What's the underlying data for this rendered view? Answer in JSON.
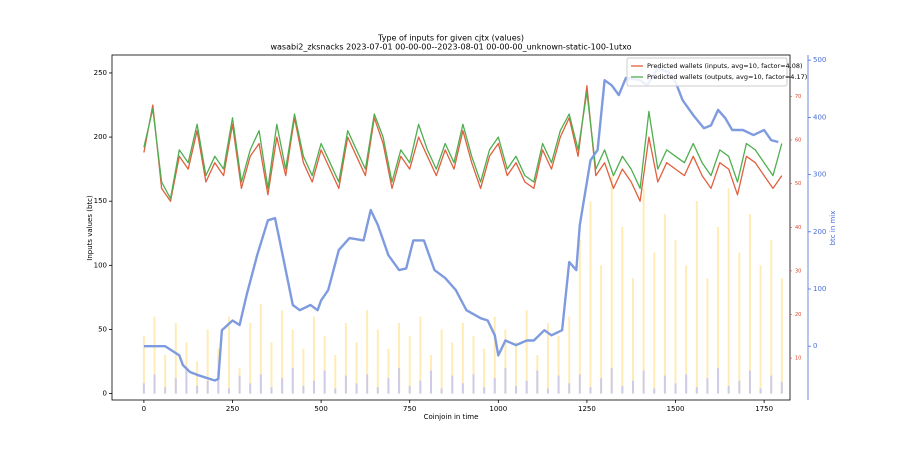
{
  "chart_data": {
    "type": "line",
    "title": "Type of inputs for given cjtx (values)",
    "subtitle": "wasabi2_zksnacks 2023-07-01 00-00-00--2023-08-01 00-00-00_unknown-static-100-1utxo",
    "xlabel": "Coinjoin in time",
    "ylabel": "Inputs values (btc)",
    "y2label": "btc in mix",
    "xlim": [
      -90,
      1823
    ],
    "xticks": [
      0,
      250,
      500,
      750,
      1000,
      1250,
      1500,
      1750
    ],
    "ylim": [
      -5,
      264
    ],
    "yticks": [
      0,
      50,
      100,
      150,
      200,
      250
    ],
    "y2lim": [
      -94,
      509
    ],
    "y2ticks": [
      0,
      100,
      200,
      300,
      400,
      500
    ],
    "y3lim": [
      0.4,
      79.5
    ],
    "y3ticks": [
      10,
      20,
      30,
      40,
      50,
      60,
      70
    ],
    "legend": "upper right",
    "series": [
      {
        "type": "bar",
        "color": "#ffe7a3",
        "x": [
          0,
          30,
          60,
          90,
          120,
          150,
          180,
          210,
          240,
          270,
          300,
          330,
          360,
          390,
          420,
          450,
          480,
          510,
          540,
          570,
          600,
          630,
          660,
          690,
          720,
          750,
          780,
          810,
          840,
          870,
          900,
          930,
          960,
          990,
          1020,
          1050,
          1080,
          1110,
          1140,
          1170,
          1200,
          1230,
          1260,
          1290,
          1320,
          1350,
          1380,
          1410,
          1440,
          1470,
          1500,
          1530,
          1560,
          1590,
          1620,
          1650,
          1680,
          1710,
          1740,
          1770,
          1800
        ],
        "values": [
          45,
          60,
          30,
          55,
          40,
          25,
          50,
          35,
          60,
          20,
          55,
          70,
          40,
          65,
          50,
          35,
          60,
          45,
          30,
          55,
          40,
          65,
          50,
          35,
          55,
          45,
          60,
          30,
          50,
          40,
          55,
          45,
          35,
          60,
          50,
          40,
          65,
          30,
          55,
          45,
          60,
          120,
          150,
          100,
          170,
          130,
          90,
          160,
          110,
          140,
          120,
          100,
          150,
          90,
          130,
          160,
          110,
          140,
          100,
          120,
          90
        ]
      },
      {
        "type": "bar",
        "color": "#c3c3f2",
        "x": [
          0,
          30,
          60,
          90,
          120,
          150,
          180,
          210,
          240,
          270,
          300,
          330,
          360,
          390,
          420,
          450,
          480,
          510,
          540,
          570,
          600,
          630,
          660,
          690,
          720,
          750,
          780,
          810,
          840,
          870,
          900,
          930,
          960,
          990,
          1020,
          1050,
          1080,
          1110,
          1140,
          1170,
          1200,
          1230,
          1260,
          1290,
          1320,
          1350,
          1380,
          1410,
          1440,
          1470,
          1500,
          1530,
          1560,
          1590,
          1620,
          1650,
          1680,
          1710,
          1740,
          1770,
          1800
        ],
        "values": [
          8,
          15,
          5,
          12,
          20,
          6,
          10,
          18,
          4,
          14,
          8,
          15,
          5,
          12,
          20,
          6,
          10,
          18,
          4,
          14,
          8,
          15,
          5,
          12,
          20,
          6,
          10,
          18,
          4,
          14,
          8,
          15,
          5,
          12,
          20,
          6,
          10,
          18,
          4,
          14,
          8,
          15,
          5,
          12,
          20,
          6,
          10,
          18,
          4,
          14,
          8,
          15,
          5,
          12,
          20,
          6,
          10,
          18,
          4,
          14,
          9
        ]
      },
      {
        "name": "Predicted wallets (inputs, avg=10, factor=4.08)",
        "color": "#e0603f",
        "width": 1.3,
        "x": [
          0,
          25,
          50,
          75,
          100,
          125,
          150,
          175,
          200,
          225,
          250,
          275,
          300,
          325,
          350,
          375,
          400,
          425,
          450,
          475,
          500,
          525,
          550,
          575,
          600,
          625,
          650,
          675,
          700,
          725,
          750,
          775,
          800,
          825,
          850,
          875,
          900,
          925,
          950,
          975,
          1000,
          1025,
          1050,
          1075,
          1100,
          1125,
          1150,
          1175,
          1200,
          1225,
          1250,
          1275,
          1300,
          1325,
          1350,
          1375,
          1400,
          1425,
          1450,
          1475,
          1500,
          1525,
          1550,
          1575,
          1600,
          1625,
          1650,
          1675,
          1700,
          1725,
          1750,
          1775,
          1800
        ],
        "values": [
          188,
          225,
          160,
          150,
          185,
          175,
          205,
          165,
          180,
          170,
          210,
          160,
          185,
          195,
          155,
          200,
          170,
          215,
          180,
          165,
          190,
          175,
          160,
          200,
          185,
          170,
          215,
          195,
          160,
          185,
          175,
          200,
          185,
          170,
          190,
          175,
          205,
          180,
          160,
          185,
          195,
          170,
          180,
          165,
          160,
          190,
          175,
          200,
          215,
          185,
          240,
          170,
          180,
          160,
          175,
          165,
          150,
          200,
          165,
          180,
          175,
          170,
          185,
          170,
          160,
          180,
          175,
          155,
          185,
          180,
          170,
          160,
          170
        ]
      },
      {
        "name": "Predicted wallets (outputs, avg=10, factor=4.17)",
        "color": "#4fae4f",
        "width": 1.3,
        "x": [
          0,
          25,
          50,
          75,
          100,
          125,
          150,
          175,
          200,
          225,
          250,
          275,
          300,
          325,
          350,
          375,
          400,
          425,
          450,
          475,
          500,
          525,
          550,
          575,
          600,
          625,
          650,
          675,
          700,
          725,
          750,
          775,
          800,
          825,
          850,
          875,
          900,
          925,
          950,
          975,
          1000,
          1025,
          1050,
          1075,
          1100,
          1125,
          1150,
          1175,
          1200,
          1225,
          1250,
          1275,
          1300,
          1325,
          1350,
          1375,
          1400,
          1425,
          1450,
          1475,
          1500,
          1525,
          1550,
          1575,
          1600,
          1625,
          1650,
          1675,
          1700,
          1725,
          1750,
          1775,
          1800
        ],
        "values": [
          192,
          222,
          165,
          152,
          190,
          180,
          210,
          170,
          185,
          175,
          215,
          165,
          190,
          205,
          160,
          210,
          175,
          218,
          185,
          170,
          195,
          180,
          165,
          205,
          190,
          175,
          218,
          200,
          165,
          190,
          180,
          210,
          190,
          175,
          195,
          180,
          210,
          185,
          165,
          190,
          200,
          175,
          185,
          170,
          165,
          195,
          180,
          205,
          218,
          190,
          235,
          175,
          190,
          170,
          185,
          175,
          160,
          220,
          175,
          190,
          185,
          180,
          195,
          180,
          170,
          190,
          185,
          165,
          195,
          190,
          180,
          170,
          195
        ]
      },
      {
        "axis": "y2",
        "color": "#7f9be0",
        "width": 2.4,
        "x": [
          0,
          50,
          60,
          100,
          110,
          130,
          150,
          175,
          200,
          210,
          220,
          250,
          270,
          290,
          320,
          350,
          370,
          380,
          400,
          420,
          440,
          470,
          490,
          500,
          520,
          550,
          580,
          620,
          640,
          660,
          690,
          720,
          740,
          760,
          790,
          820,
          850,
          880,
          910,
          950,
          970,
          990,
          1000,
          1020,
          1050,
          1080,
          1100,
          1130,
          1150,
          1180,
          1200,
          1220,
          1230,
          1260,
          1280,
          1300,
          1320,
          1340,
          1360,
          1400,
          1420,
          1450,
          1480,
          1500,
          1520,
          1550,
          1580,
          1600,
          1620,
          1640,
          1660,
          1690,
          1720,
          1750,
          1770,
          1790
        ],
        "values": [
          0,
          0,
          0,
          -16,
          -33,
          -45,
          -50,
          -55,
          -60,
          -57,
          28,
          45,
          37,
          90,
          160,
          220,
          224,
          194,
          133,
          72,
          63,
          72,
          63,
          80,
          98,
          168,
          189,
          185,
          238,
          212,
          159,
          133,
          136,
          185,
          185,
          133,
          119,
          98,
          63,
          49,
          45,
          19,
          -16,
          10,
          2,
          10,
          10,
          28,
          19,
          28,
          147,
          133,
          212,
          325,
          343,
          465,
          456,
          439,
          469,
          465,
          456,
          486,
          479,
          462,
          430,
          404,
          381,
          386,
          413,
          399,
          378,
          378,
          369,
          378,
          360,
          357
        ]
      }
    ]
  }
}
